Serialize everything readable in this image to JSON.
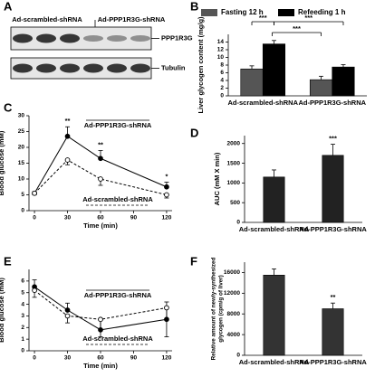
{
  "chart_data": [
    {
      "type": "blot",
      "panel": "A",
      "groups": [
        "Ad-scrambled-shRNA",
        "Ad-PPP1R3G-shRNA"
      ],
      "bands": [
        "PPP1R3G",
        "Tubulin"
      ]
    },
    {
      "type": "bar",
      "panel": "B",
      "ylabel": [
        "Liver glycogen content (mg/g)"
      ],
      "categories": [
        "Ad-scrambled-shRNA",
        "Ad-PPP1R3G-shRNA"
      ],
      "series": [
        {
          "name": "Fasting 12 h",
          "color": "#555555",
          "values": [
            7,
            4.2
          ],
          "errors": [
            0.8,
            0.9
          ]
        },
        {
          "name": "Refeeding 1 h",
          "color": "#000000",
          "values": [
            13.5,
            7.5
          ],
          "errors": [
            0.9,
            0.6
          ]
        }
      ],
      "ylim": [
        0,
        16
      ],
      "yticks": [
        0,
        2,
        4,
        6,
        8,
        10,
        12,
        14
      ],
      "annotations": [
        "***",
        "***",
        "***"
      ]
    },
    {
      "type": "line",
      "panel": "C",
      "xlabel": "Time (min)",
      "ylabel": [
        "Blood glucose (mM)"
      ],
      "x": [
        0,
        30,
        60,
        120
      ],
      "series": [
        {
          "name": "Ad-PPP1R3G-shRNA",
          "color": "#000000",
          "dashed": false,
          "filled": true,
          "values": [
            5.5,
            23.5,
            16.5,
            7.5
          ],
          "errors": [
            0.5,
            3,
            2.5,
            1.5
          ]
        },
        {
          "name": "Ad-scrambled-shRNA",
          "color": "#000000",
          "dashed": true,
          "filled": false,
          "values": [
            5.5,
            16,
            10,
            5
          ],
          "errors": [
            0.5,
            1.5,
            2,
            1
          ]
        }
      ],
      "significance": [
        null,
        "**",
        "**",
        "*"
      ],
      "xlim": [
        -5,
        125
      ],
      "xticks": [
        0,
        30,
        60,
        90,
        120
      ],
      "ylim": [
        0,
        30
      ],
      "yticks": [
        0,
        5,
        10,
        15,
        20,
        25,
        30
      ]
    },
    {
      "type": "bar",
      "panel": "D",
      "ylabel": [
        "AUC (mM X min)"
      ],
      "categories": [
        "Ad-scrambled-shRNA",
        "Ad-PPP1R3G-shRNA"
      ],
      "values": [
        1150,
        1700
      ],
      "errors": [
        180,
        280
      ],
      "color": "#222222",
      "significance": [
        null,
        "***"
      ],
      "ylim": [
        0,
        2200
      ],
      "yticks": [
        0,
        500,
        1000,
        1500,
        2000
      ]
    },
    {
      "type": "line",
      "panel": "E",
      "xlabel": "Time (min)",
      "ylabel": [
        "Blood glucose (mM)"
      ],
      "x": [
        0,
        30,
        60,
        120
      ],
      "series": [
        {
          "name": "Ad-PPP1R3G-shRNA",
          "color": "#000000",
          "dashed": false,
          "filled": true,
          "values": [
            5.5,
            3.5,
            1.8,
            2.7
          ],
          "errors": [
            0.6,
            0.6,
            0.8,
            1.5
          ]
        },
        {
          "name": "Ad-scrambled-shRNA",
          "color": "#000000",
          "dashed": true,
          "filled": false,
          "values": [
            5.2,
            3.0,
            2.7,
            3.7
          ],
          "errors": [
            0.6,
            0.6,
            1.5,
            2.5
          ]
        }
      ],
      "xlim": [
        -5,
        125
      ],
      "xticks": [
        0,
        30,
        60,
        90,
        120
      ],
      "ylim": [
        0,
        7
      ],
      "yticks": [
        0,
        1,
        2,
        3,
        4,
        5,
        6
      ]
    },
    {
      "type": "bar",
      "panel": "F",
      "ylabel": [
        "Relative amount of newly-synthesized",
        "glycogen (cpm/g of liver)"
      ],
      "categories": [
        "Ad-scrambled-shRNA",
        "Ad-PPP1R3G-shRNA"
      ],
      "values": [
        15500,
        9000
      ],
      "errors": [
        1200,
        1100
      ],
      "color": "#333333",
      "significance": [
        null,
        "**"
      ],
      "ylim": [
        0,
        18000
      ],
      "yticks": [
        0,
        4000,
        8000,
        12000,
        16000
      ]
    }
  ]
}
